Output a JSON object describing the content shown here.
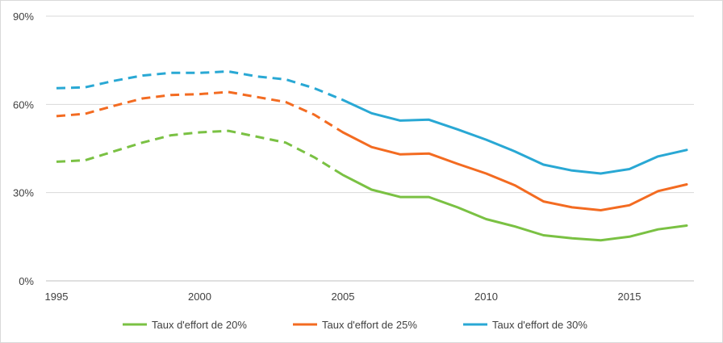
{
  "chart_data": {
    "type": "line",
    "title": "",
    "xlabel": "",
    "ylabel": "",
    "xlim": [
      1995,
      2017
    ],
    "ylim": [
      0,
      90
    ],
    "y_ticks": [
      0,
      30,
      60,
      90
    ],
    "y_tick_labels": [
      "0%",
      "30%",
      "60%",
      "90%"
    ],
    "x_ticks": [
      1995,
      2000,
      2005,
      2010,
      2015
    ],
    "x_tick_labels": [
      "1995",
      "2000",
      "2005",
      "2010",
      "2015"
    ],
    "grid": "horizontal",
    "legend_position": "bottom",
    "x": [
      1995,
      1996,
      1997,
      1998,
      1999,
      2000,
      2001,
      2002,
      2003,
      2004,
      2005,
      2006,
      2007,
      2008,
      2009,
      2010,
      2011,
      2012,
      2013,
      2014,
      2015,
      2016,
      2017
    ],
    "dashed_until": 2005,
    "series": [
      {
        "name": "Taux d'effort de 20%",
        "color": "#7ac143",
        "values": [
          40.5,
          41,
          44,
          47,
          49.5,
          50.5,
          51,
          49,
          47,
          42,
          36,
          31,
          28.5,
          28.5,
          25,
          21,
          18.5,
          15.5,
          14.5,
          13.8,
          15,
          17.5,
          18.8
        ]
      },
      {
        "name": "Taux d'effort de 25%",
        "color": "#f36b21",
        "values": [
          56,
          56.8,
          59.5,
          62,
          63.2,
          63.5,
          64.2,
          62.5,
          60.8,
          56.5,
          50.5,
          45.5,
          43,
          43.3,
          39.8,
          36.5,
          32.5,
          27,
          25,
          24,
          25.7,
          30.5,
          32.8
        ]
      },
      {
        "name": "Taux d'effort de 30%",
        "color": "#29a8d4",
        "values": [
          65.5,
          65.8,
          68,
          69.8,
          70.7,
          70.7,
          71.2,
          69.5,
          68.5,
          65.5,
          61.5,
          57,
          54.5,
          54.8,
          51.5,
          48,
          44,
          39.5,
          37.5,
          36.5,
          38,
          42.3,
          44.5
        ]
      }
    ]
  }
}
